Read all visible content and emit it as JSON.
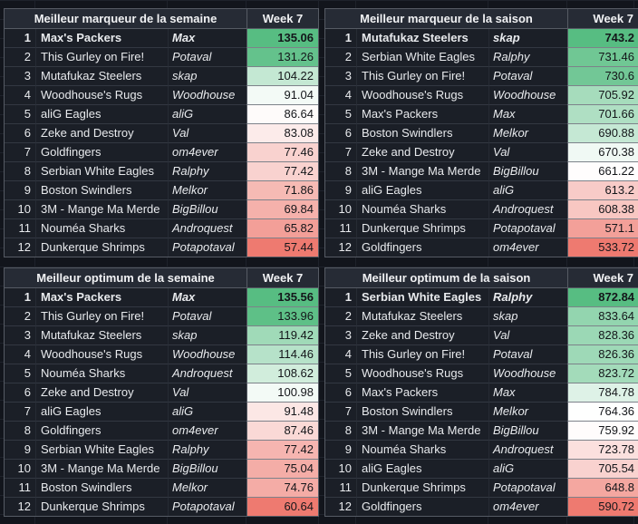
{
  "colors": {
    "page_bg": "#12151c",
    "grid_line": "#1e222b",
    "cell_bg": "#1b1f27",
    "header_bg": "#262b35",
    "border_strong": "#565b64",
    "text_light": "#e8eaed",
    "value_text": "#14161a",
    "scale_max_green": "#57bd82",
    "scale_mid_white": "#ffffff",
    "scale_min_red": "#ee7a70"
  },
  "tables": [
    {
      "id": "best-scorer-week",
      "title": "Meilleur marqueur de la semaine",
      "week": "Week 7",
      "rows": [
        {
          "rank": "1",
          "team": "Max's Packers",
          "manager": "Max",
          "value": "135.06"
        },
        {
          "rank": "2",
          "team": "This Gurley on Fire!",
          "manager": "Potaval",
          "value": "131.26"
        },
        {
          "rank": "3",
          "team": "Mutafukaz Steelers",
          "manager": "skap",
          "value": "104.22"
        },
        {
          "rank": "4",
          "team": "Woodhouse's Rugs",
          "manager": "Woodhouse",
          "value": "91.04"
        },
        {
          "rank": "5",
          "team": "aliG Eagles",
          "manager": "aliG",
          "value": "86.64"
        },
        {
          "rank": "6",
          "team": "Zeke and Destroy",
          "manager": "Val",
          "value": "83.08"
        },
        {
          "rank": "7",
          "team": "Goldfingers",
          "manager": "om4ever",
          "value": "77.46"
        },
        {
          "rank": "8",
          "team": "Serbian White Eagles",
          "manager": "Ralphy",
          "value": "77.42"
        },
        {
          "rank": "9",
          "team": "Boston Swindlers",
          "manager": "Melkor",
          "value": "71.86"
        },
        {
          "rank": "10",
          "team": "3M - Mange Ma Merde",
          "manager": "BigBillou",
          "value": "69.84"
        },
        {
          "rank": "11",
          "team": "Nouméa Sharks",
          "manager": "Androquest",
          "value": "65.82"
        },
        {
          "rank": "12",
          "team": "Dunkerque Shrimps",
          "manager": "Potapotaval",
          "value": "57.44"
        }
      ]
    },
    {
      "id": "best-scorer-season",
      "title": "Meilleur marqueur de la saison",
      "week": "Week 7",
      "rows": [
        {
          "rank": "1",
          "team": "Mutafukaz Steelers",
          "manager": "skap",
          "value": "743.2"
        },
        {
          "rank": "2",
          "team": "Serbian White Eagles",
          "manager": "Ralphy",
          "value": "731.46"
        },
        {
          "rank": "3",
          "team": "This Gurley on Fire!",
          "manager": "Potaval",
          "value": "730.6"
        },
        {
          "rank": "4",
          "team": "Woodhouse's Rugs",
          "manager": "Woodhouse",
          "value": "705.92"
        },
        {
          "rank": "5",
          "team": "Max's Packers",
          "manager": "Max",
          "value": "701.66"
        },
        {
          "rank": "6",
          "team": "Boston Swindlers",
          "manager": "Melkor",
          "value": "690.88"
        },
        {
          "rank": "7",
          "team": "Zeke and Destroy",
          "manager": "Val",
          "value": "670.38"
        },
        {
          "rank": "8",
          "team": "3M - Mange Ma Merde",
          "manager": "BigBillou",
          "value": "661.22"
        },
        {
          "rank": "9",
          "team": "aliG Eagles",
          "manager": "aliG",
          "value": "613.2"
        },
        {
          "rank": "10",
          "team": "Nouméa Sharks",
          "manager": "Androquest",
          "value": "608.38"
        },
        {
          "rank": "11",
          "team": "Dunkerque Shrimps",
          "manager": "Potapotaval",
          "value": "571.1"
        },
        {
          "rank": "12",
          "team": "Goldfingers",
          "manager": "om4ever",
          "value": "533.72"
        }
      ]
    },
    {
      "id": "best-optimum-week",
      "title": "Meilleur optimum de la semaine",
      "week": "Week 7",
      "rows": [
        {
          "rank": "1",
          "team": "Max's Packers",
          "manager": "Max",
          "value": "135.56"
        },
        {
          "rank": "2",
          "team": "This Gurley on Fire!",
          "manager": "Potaval",
          "value": "133.96"
        },
        {
          "rank": "3",
          "team": "Mutafukaz Steelers",
          "manager": "skap",
          "value": "119.42"
        },
        {
          "rank": "4",
          "team": "Woodhouse's Rugs",
          "manager": "Woodhouse",
          "value": "114.46"
        },
        {
          "rank": "5",
          "team": "Nouméa Sharks",
          "manager": "Androquest",
          "value": "108.62"
        },
        {
          "rank": "6",
          "team": "Zeke and Destroy",
          "manager": "Val",
          "value": "100.98"
        },
        {
          "rank": "7",
          "team": "aliG Eagles",
          "manager": "aliG",
          "value": "91.48"
        },
        {
          "rank": "8",
          "team": "Goldfingers",
          "manager": "om4ever",
          "value": "87.46"
        },
        {
          "rank": "9",
          "team": "Serbian White Eagles",
          "manager": "Ralphy",
          "value": "77.42"
        },
        {
          "rank": "10",
          "team": "3M - Mange Ma Merde",
          "manager": "BigBillou",
          "value": "75.04"
        },
        {
          "rank": "11",
          "team": "Boston Swindlers",
          "manager": "Melkor",
          "value": "74.76"
        },
        {
          "rank": "12",
          "team": "Dunkerque Shrimps",
          "manager": "Potapotaval",
          "value": "60.64"
        }
      ]
    },
    {
      "id": "best-optimum-season",
      "title": "Meilleur optimum de la saison",
      "week": "Week 7",
      "rows": [
        {
          "rank": "1",
          "team": "Serbian White Eagles",
          "manager": "Ralphy",
          "value": "872.84"
        },
        {
          "rank": "2",
          "team": "Mutafukaz Steelers",
          "manager": "skap",
          "value": "833.64"
        },
        {
          "rank": "3",
          "team": "Zeke and Destroy",
          "manager": "Val",
          "value": "828.36"
        },
        {
          "rank": "4",
          "team": "This Gurley on Fire!",
          "manager": "Potaval",
          "value": "826.36"
        },
        {
          "rank": "5",
          "team": "Woodhouse's Rugs",
          "manager": "Woodhouse",
          "value": "823.72"
        },
        {
          "rank": "6",
          "team": "Max's Packers",
          "manager": "Max",
          "value": "784.78"
        },
        {
          "rank": "7",
          "team": "Boston Swindlers",
          "manager": "Melkor",
          "value": "764.36"
        },
        {
          "rank": "8",
          "team": "3M - Mange Ma Merde",
          "manager": "BigBillou",
          "value": "759.92"
        },
        {
          "rank": "9",
          "team": "Nouméa Sharks",
          "manager": "Androquest",
          "value": "723.78"
        },
        {
          "rank": "10",
          "team": "aliG Eagles",
          "manager": "aliG",
          "value": "705.54"
        },
        {
          "rank": "11",
          "team": "Dunkerque Shrimps",
          "manager": "Potapotaval",
          "value": "648.8"
        },
        {
          "rank": "12",
          "team": "Goldfingers",
          "manager": "om4ever",
          "value": "590.72"
        }
      ]
    }
  ]
}
